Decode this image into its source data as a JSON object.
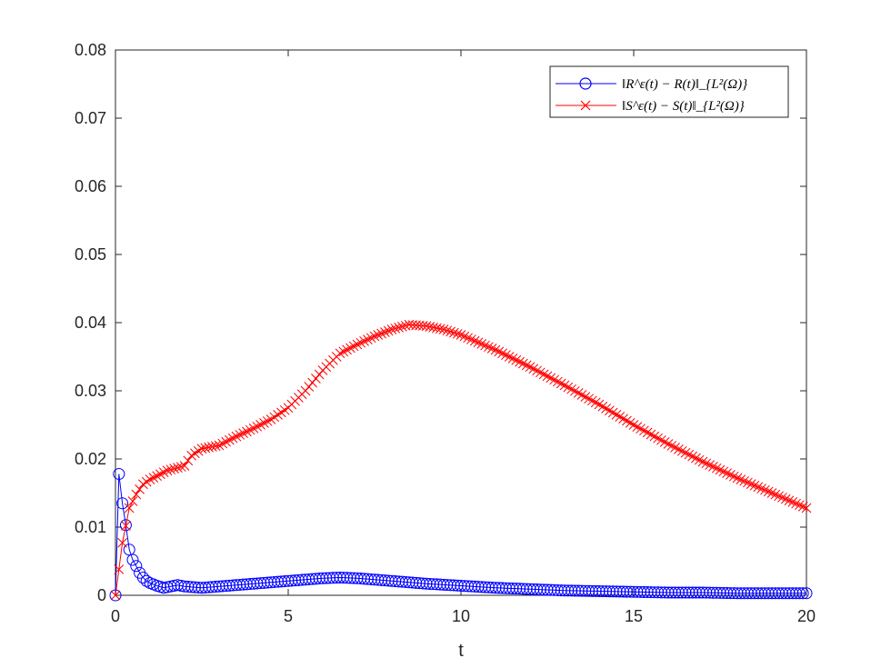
{
  "chart_data": {
    "type": "line",
    "title": "",
    "xlabel": "t",
    "ylabel": "",
    "xlim": [
      0,
      20
    ],
    "ylim": [
      0,
      0.08
    ],
    "xticks": [
      "0",
      "5",
      "10",
      "15",
      "20"
    ],
    "yticks": [
      "0",
      "0.01",
      "0.02",
      "0.03",
      "0.04",
      "0.05",
      "0.06",
      "0.07",
      "0.08"
    ],
    "grid": false,
    "legend_position": "top-right",
    "series": [
      {
        "name": "‖R^ε(t) − R(t)‖_{L²(Ω)}",
        "color": "#0000ff",
        "marker": "circle",
        "x": [
          0,
          0.1,
          0.2,
          0.3,
          0.4,
          0.5,
          0.6,
          0.7,
          0.8,
          0.9,
          1.0,
          1.2,
          1.4,
          1.6,
          1.8,
          2.0,
          2.5,
          3.0,
          3.5,
          4.0,
          4.5,
          5.0,
          5.5,
          6.0,
          6.5,
          7.0,
          7.5,
          8.0,
          9.0,
          10.0,
          11.0,
          12.0,
          13.0,
          14.0,
          15.0,
          16.0,
          17.0,
          18.0,
          19.0,
          20.0
        ],
        "y": [
          0,
          0.0178,
          0.0135,
          0.0103,
          0.0067,
          0.0052,
          0.0043,
          0.0033,
          0.0026,
          0.0021,
          0.0018,
          0.0014,
          0.0011,
          0.0013,
          0.0015,
          0.0013,
          0.0011,
          0.0013,
          0.0015,
          0.0017,
          0.0019,
          0.0021,
          0.0023,
          0.0025,
          0.0026,
          0.0025,
          0.0023,
          0.0021,
          0.0017,
          0.0014,
          0.0011,
          0.0009,
          0.0007,
          0.0006,
          0.0005,
          0.0004,
          0.0004,
          0.0003,
          0.0003,
          0.0003
        ]
      },
      {
        "name": "‖S^ε(t) − S(t)‖_{L²(Ω)}",
        "color": "#ff0000",
        "marker": "x",
        "x": [
          0,
          0.1,
          0.2,
          0.3,
          0.4,
          0.6,
          0.8,
          1.0,
          1.2,
          1.5,
          2.0,
          2.2,
          2.5,
          3.0,
          3.5,
          4.0,
          4.5,
          5.0,
          5.5,
          6.0,
          6.5,
          7.0,
          7.5,
          8.0,
          8.5,
          9.0,
          9.5,
          10.0,
          11.0,
          12.0,
          13.0,
          14.0,
          15.0,
          16.0,
          17.0,
          18.0,
          19.0,
          20.0
        ],
        "y": [
          0,
          0.0038,
          0.0077,
          0.0102,
          0.0128,
          0.0148,
          0.0163,
          0.017,
          0.0175,
          0.0183,
          0.019,
          0.0205,
          0.0215,
          0.022,
          0.0233,
          0.0245,
          0.0258,
          0.0275,
          0.03,
          0.033,
          0.0355,
          0.0368,
          0.038,
          0.039,
          0.0397,
          0.0395,
          0.039,
          0.0382,
          0.036,
          0.0335,
          0.0308,
          0.028,
          0.025,
          0.0222,
          0.0196,
          0.0172,
          0.015,
          0.0128
        ]
      }
    ]
  }
}
